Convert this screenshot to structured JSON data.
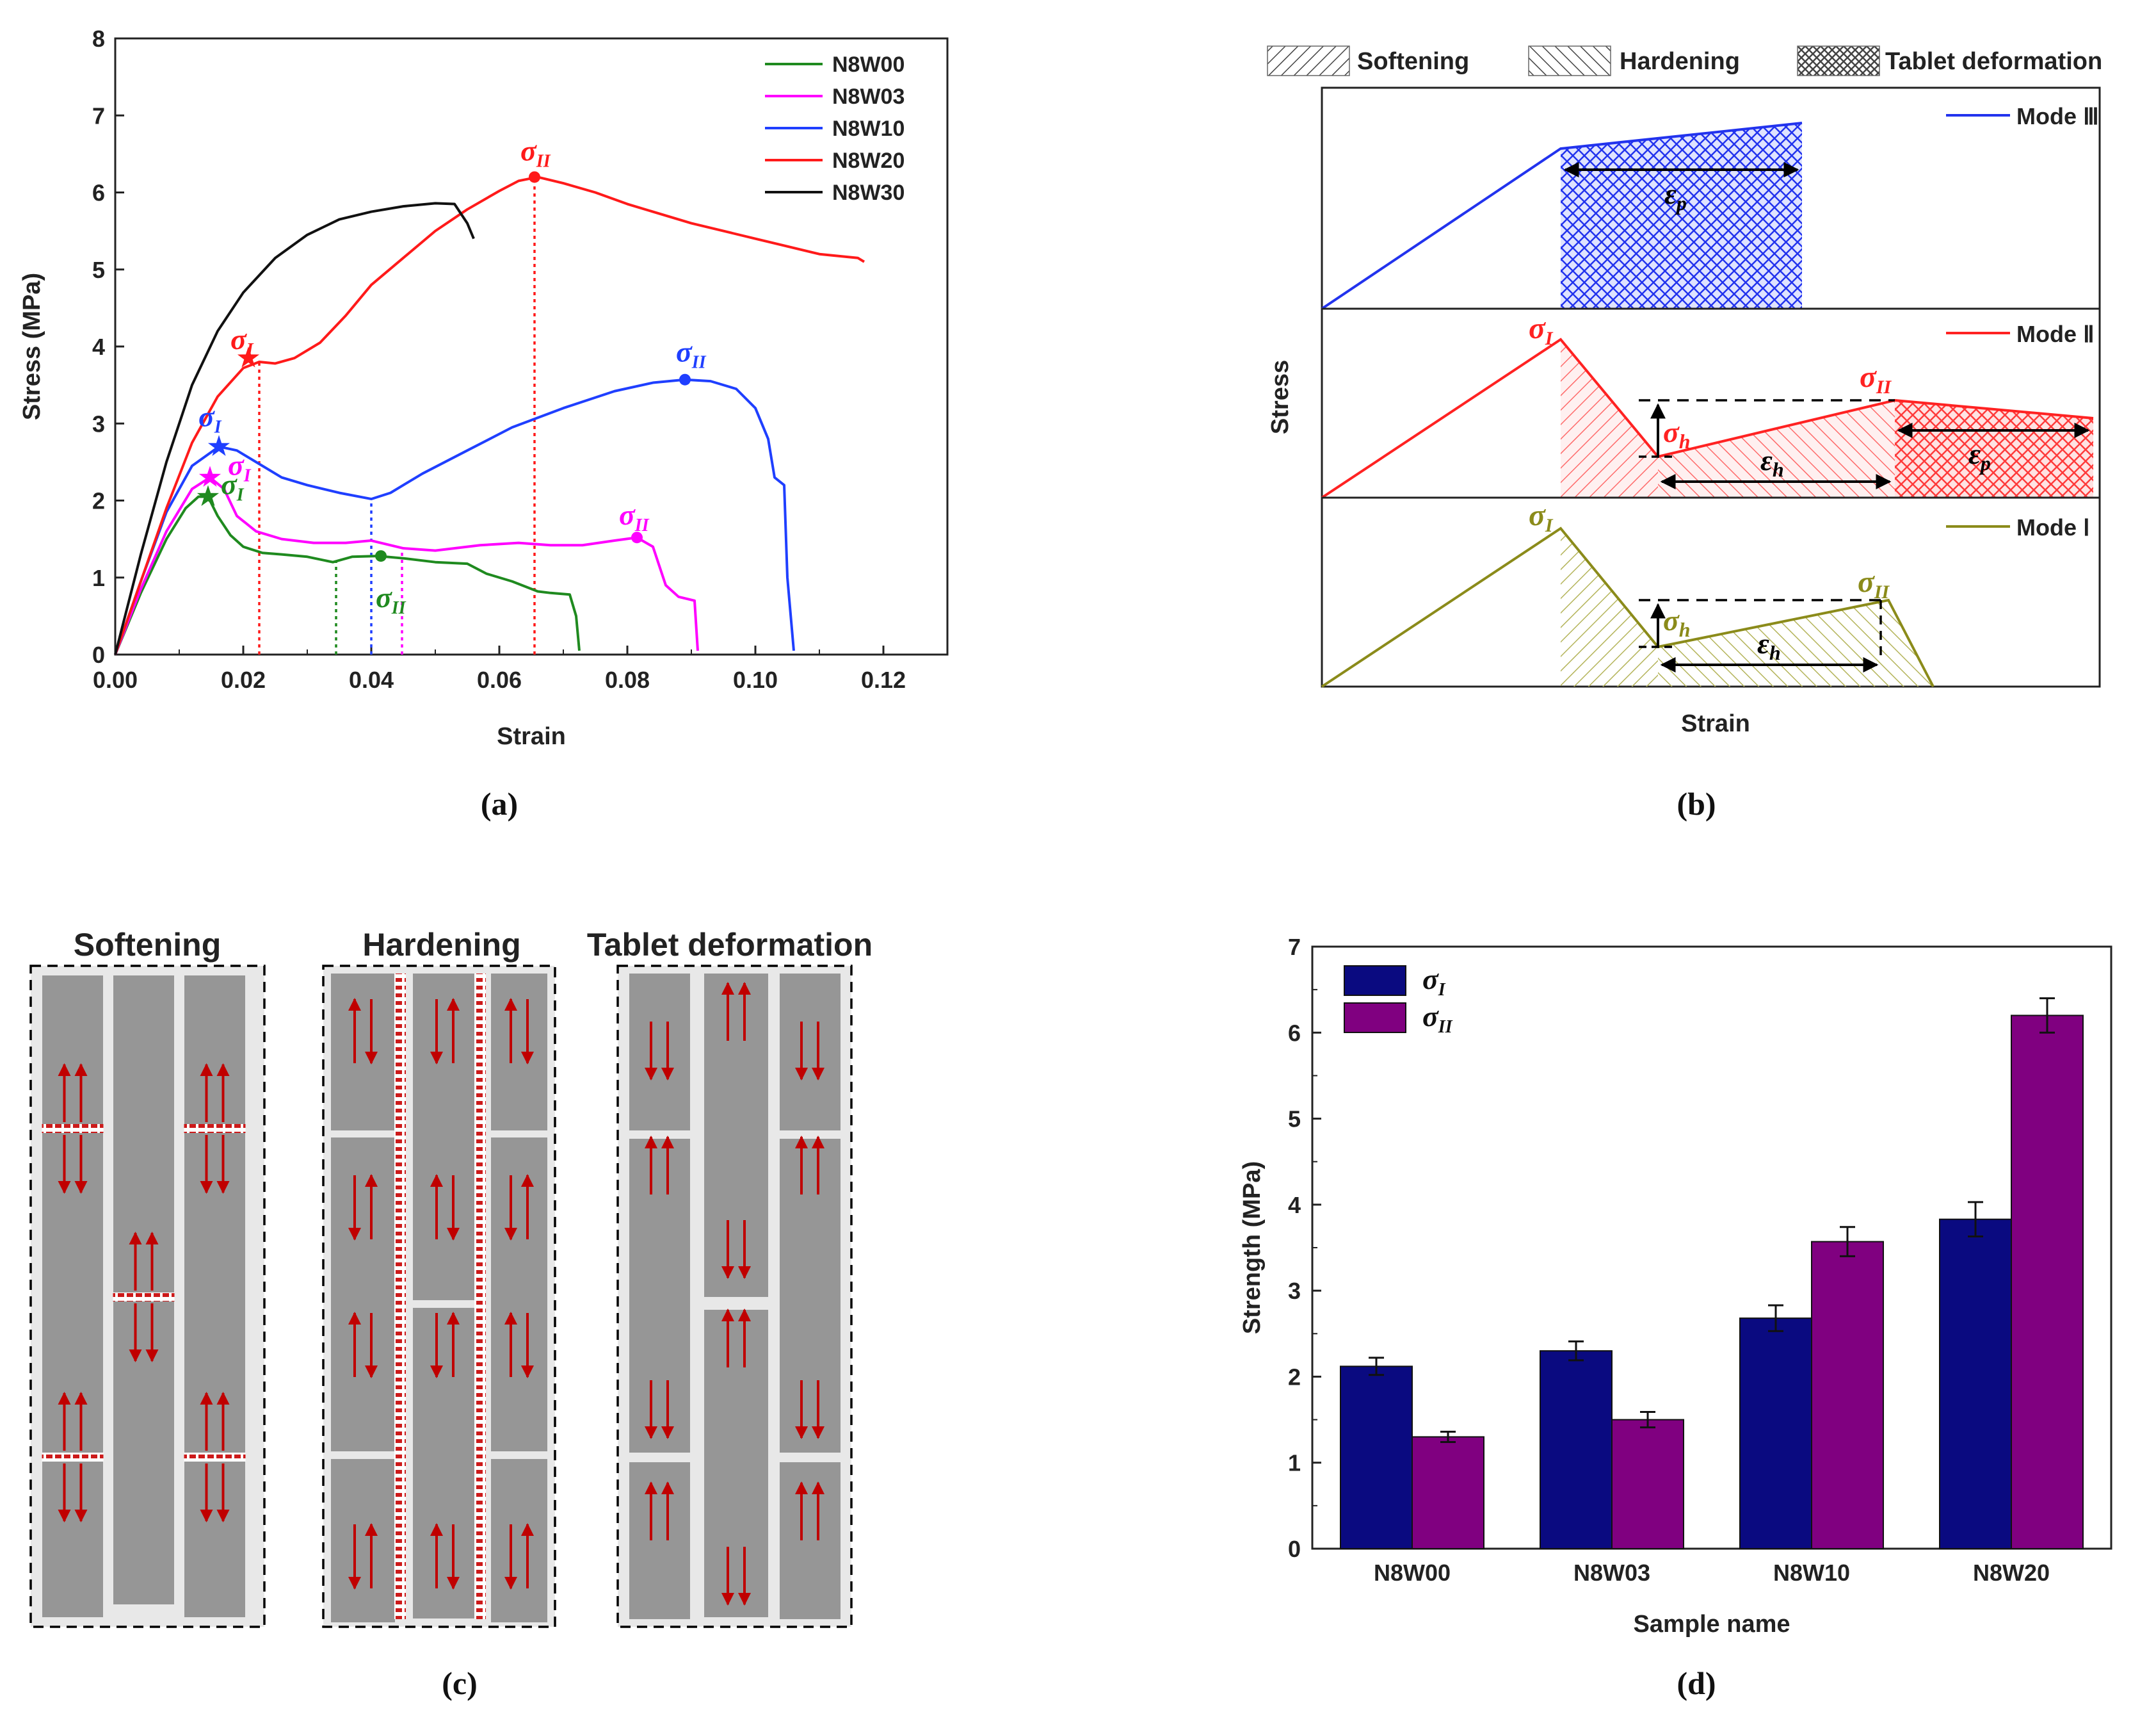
{
  "panels": {
    "a": "(a)",
    "b": "(b)",
    "c": "(c)",
    "d": "(d)"
  },
  "symbols": {
    "sigma": "σ",
    "eps": "ε",
    "sub_I": "I",
    "sub_II": "II",
    "sub_h": "h",
    "sub_p": "p"
  },
  "chart_data": [
    {
      "type": "line",
      "panel": "a",
      "xlabel": "Strain",
      "ylabel": "Stress (MPa)",
      "xlim": [
        0.0,
        0.13
      ],
      "ylim": [
        0,
        8
      ],
      "xticks": [
        "0.00",
        "0.02",
        "0.04",
        "0.06",
        "0.08",
        "0.10",
        "0.12"
      ],
      "xtick_values": [
        0,
        0.02,
        0.04,
        0.06,
        0.08,
        0.1,
        0.12
      ],
      "yticks": [
        "0",
        "1",
        "2",
        "3",
        "4",
        "5",
        "6",
        "7",
        "8"
      ],
      "legend_position": "top-right",
      "series": [
        {
          "name": "N8W00",
          "color": "#1f8a1f",
          "x": [
            0,
            0.004,
            0.008,
            0.011,
            0.013,
            0.0145,
            0.016,
            0.018,
            0.02,
            0.023,
            0.026,
            0.03,
            0.034,
            0.037,
            0.041,
            0.045,
            0.05,
            0.055,
            0.058,
            0.062,
            0.066,
            0.068,
            0.071,
            0.072,
            0.0725
          ],
          "y": [
            0,
            0.8,
            1.5,
            1.9,
            2.05,
            2.05,
            1.8,
            1.55,
            1.4,
            1.32,
            1.3,
            1.27,
            1.2,
            1.27,
            1.28,
            1.25,
            1.2,
            1.18,
            1.05,
            0.95,
            0.82,
            0.8,
            0.78,
            0.5,
            0.05
          ]
        },
        {
          "name": "N8W03",
          "color": "#ff00ff",
          "x": [
            0,
            0.004,
            0.008,
            0.012,
            0.0148,
            0.017,
            0.019,
            0.022,
            0.026,
            0.031,
            0.036,
            0.04,
            0.045,
            0.05,
            0.057,
            0.063,
            0.068,
            0.073,
            0.078,
            0.0815,
            0.084,
            0.086,
            0.088,
            0.0905,
            0.091
          ],
          "y": [
            0,
            0.85,
            1.6,
            2.15,
            2.3,
            2.15,
            1.8,
            1.6,
            1.5,
            1.45,
            1.45,
            1.48,
            1.38,
            1.35,
            1.42,
            1.45,
            1.42,
            1.42,
            1.48,
            1.52,
            1.4,
            0.9,
            0.75,
            0.7,
            0.05
          ]
        },
        {
          "name": "N8W10",
          "color": "#1f3fff",
          "x": [
            0,
            0.004,
            0.008,
            0.012,
            0.0162,
            0.019,
            0.022,
            0.026,
            0.03,
            0.035,
            0.04,
            0.043,
            0.048,
            0.055,
            0.062,
            0.07,
            0.078,
            0.084,
            0.089,
            0.093,
            0.097,
            0.1,
            0.102,
            0.103,
            0.1045,
            0.105,
            0.106
          ],
          "y": [
            0,
            0.95,
            1.85,
            2.45,
            2.7,
            2.65,
            2.5,
            2.3,
            2.2,
            2.1,
            2.02,
            2.1,
            2.35,
            2.65,
            2.95,
            3.2,
            3.42,
            3.53,
            3.57,
            3.55,
            3.45,
            3.2,
            2.8,
            2.3,
            2.2,
            1.0,
            0.05
          ]
        },
        {
          "name": "N8W20",
          "color": "#ff1a1a",
          "x": [
            0,
            0.004,
            0.008,
            0.012,
            0.016,
            0.02,
            0.0225,
            0.025,
            0.028,
            0.032,
            0.036,
            0.04,
            0.045,
            0.05,
            0.055,
            0.06,
            0.063,
            0.066,
            0.07,
            0.075,
            0.08,
            0.09,
            0.1,
            0.11,
            0.116,
            0.117
          ],
          "y": [
            0,
            0.95,
            1.9,
            2.75,
            3.35,
            3.72,
            3.8,
            3.78,
            3.85,
            4.05,
            4.4,
            4.8,
            5.15,
            5.5,
            5.78,
            6.02,
            6.15,
            6.2,
            6.12,
            6.0,
            5.85,
            5.6,
            5.4,
            5.2,
            5.15,
            5.1
          ]
        },
        {
          "name": "N8W30",
          "color": "#111111",
          "x": [
            0,
            0.004,
            0.008,
            0.012,
            0.016,
            0.02,
            0.025,
            0.03,
            0.035,
            0.04,
            0.045,
            0.05,
            0.053,
            0.055,
            0.056
          ],
          "y": [
            0,
            1.3,
            2.5,
            3.5,
            4.2,
            4.7,
            5.15,
            5.45,
            5.65,
            5.75,
            5.82,
            5.86,
            5.85,
            5.6,
            5.4
          ]
        }
      ],
      "markers": [
        {
          "series": "N8W00",
          "kind": "star",
          "label": "I",
          "x": 0.0145,
          "y": 2.05
        },
        {
          "series": "N8W00",
          "kind": "dot",
          "label": "II",
          "x": 0.0415,
          "y": 1.28
        },
        {
          "series": "N8W03",
          "kind": "star",
          "label": "I",
          "x": 0.0148,
          "y": 2.3
        },
        {
          "series": "N8W03",
          "kind": "dot",
          "label": "II",
          "x": 0.0815,
          "y": 1.52
        },
        {
          "series": "N8W10",
          "kind": "star",
          "label": "I",
          "x": 0.0162,
          "y": 2.7
        },
        {
          "series": "N8W10",
          "kind": "dot",
          "label": "II",
          "x": 0.089,
          "y": 3.57
        },
        {
          "series": "N8W20",
          "kind": "star",
          "label": "I",
          "x": 0.0208,
          "y": 3.85
        },
        {
          "series": "N8W20",
          "kind": "dot",
          "label": "II",
          "x": 0.0655,
          "y": 6.2
        }
      ],
      "dotted_lines": [
        {
          "color": "#1f8a1f",
          "x": 0.0345,
          "y": 1.2
        },
        {
          "color": "#1f3fff",
          "x": 0.04,
          "y": 2.02
        },
        {
          "color": "#ff00ff",
          "x": 0.0448,
          "y": 1.38
        },
        {
          "color": "#ff1a1a",
          "x": 0.0225,
          "y": 3.8
        },
        {
          "color": "#ff1a1a",
          "x": 0.0655,
          "y": 6.2
        }
      ]
    },
    {
      "type": "diagram",
      "panel": "b",
      "xlabel": "Strain",
      "ylabel": "Stress",
      "legend": [
        "Softening",
        "Hardening",
        "Tablet deformation"
      ],
      "modes": [
        {
          "name": "Mode Ⅲ",
          "color": "#2233ee",
          "annotations": [
            "ε_p"
          ]
        },
        {
          "name": "Mode Ⅱ",
          "color": "#ff2222",
          "annotations": [
            "σ_I",
            "σ_h",
            "σ_II",
            "ε_h",
            "ε_p"
          ]
        },
        {
          "name": "Mode Ⅰ",
          "color": "#8b8b1a",
          "annotations": [
            "σ_I",
            "σ_h",
            "σ_II",
            "ε_h"
          ]
        }
      ]
    },
    {
      "type": "bar",
      "panel": "d",
      "categories": [
        "N8W00",
        "N8W03",
        "N8W10",
        "N8W20"
      ],
      "series": [
        {
          "name": "σ_I",
          "color": "#0a0a80",
          "values": [
            2.12,
            2.3,
            2.68,
            3.83
          ],
          "errors": [
            0.1,
            0.11,
            0.15,
            0.2
          ]
        },
        {
          "name": "σ_II",
          "color": "#800080",
          "values": [
            1.3,
            1.5,
            3.57,
            6.2
          ],
          "errors": [
            0.06,
            0.09,
            0.17,
            0.2
          ]
        }
      ],
      "xlabel": "Sample name",
      "ylabel": "Strength (MPa)",
      "ylim": [
        0,
        7
      ],
      "yticks": [
        "0",
        "1",
        "2",
        "3",
        "4",
        "5",
        "6",
        "7"
      ],
      "legend_position": "top-left"
    }
  ],
  "panel_c": {
    "titles": [
      "Softening",
      "Hardening",
      "Tablet deformation"
    ]
  }
}
